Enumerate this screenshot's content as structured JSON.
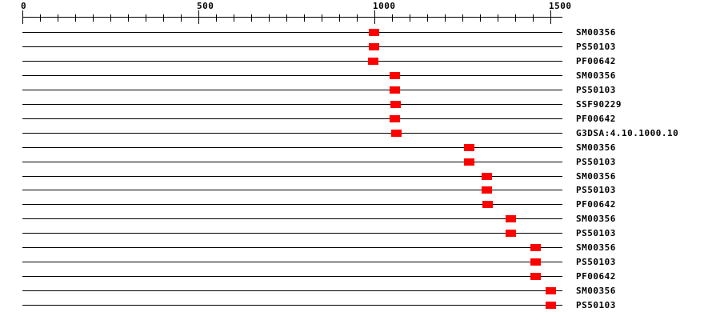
{
  "page": {
    "background": "#ffffff"
  },
  "colors": {
    "track_line": "#000000",
    "domain_box": "#ff0000",
    "text": "#000000",
    "tick": "#000000"
  },
  "axis": {
    "min": 0,
    "max": 1500,
    "major_ticks": [
      0,
      500,
      1000,
      1500
    ],
    "major_tick_labels": [
      "0",
      "500",
      "1000",
      "1500"
    ],
    "minor_tick_interval": 50,
    "sequence_length": 1534
  },
  "chart_data": {
    "type": "feature-track",
    "title": "",
    "xlabel": "",
    "ylabel": "",
    "xlim": [
      0,
      1534
    ],
    "x_tick_labels": [
      "0",
      "500",
      "1000",
      "1500"
    ],
    "grid": false,
    "legend": false,
    "marker_color": "#ff0000",
    "rows": [
      {
        "label": "SM00356",
        "start": 985,
        "end": 1014
      },
      {
        "label": "PS50103",
        "start": 984,
        "end": 1013
      },
      {
        "label": "PF00642",
        "start": 982,
        "end": 1011
      },
      {
        "label": "SM00356",
        "start": 1044,
        "end": 1074
      },
      {
        "label": "PS50103",
        "start": 1044,
        "end": 1074
      },
      {
        "label": "SSF90229",
        "start": 1045,
        "end": 1075
      },
      {
        "label": "PF00642",
        "start": 1043,
        "end": 1072
      },
      {
        "label": "G3DSA:4.10.1000.10",
        "start": 1048,
        "end": 1077
      },
      {
        "label": "SM00356",
        "start": 1254,
        "end": 1284
      },
      {
        "label": "PS50103",
        "start": 1254,
        "end": 1284
      },
      {
        "label": "SM00356",
        "start": 1304,
        "end": 1334
      },
      {
        "label": "PS50103",
        "start": 1304,
        "end": 1334
      },
      {
        "label": "PF00642",
        "start": 1306,
        "end": 1335
      },
      {
        "label": "SM00356",
        "start": 1373,
        "end": 1402
      },
      {
        "label": "PS50103",
        "start": 1373,
        "end": 1402
      },
      {
        "label": "SM00356",
        "start": 1443,
        "end": 1473
      },
      {
        "label": "PS50103",
        "start": 1443,
        "end": 1473
      },
      {
        "label": "PF00642",
        "start": 1443,
        "end": 1472
      },
      {
        "label": "SM00356",
        "start": 1487,
        "end": 1516
      },
      {
        "label": "PS50103",
        "start": 1487,
        "end": 1516
      }
    ]
  }
}
